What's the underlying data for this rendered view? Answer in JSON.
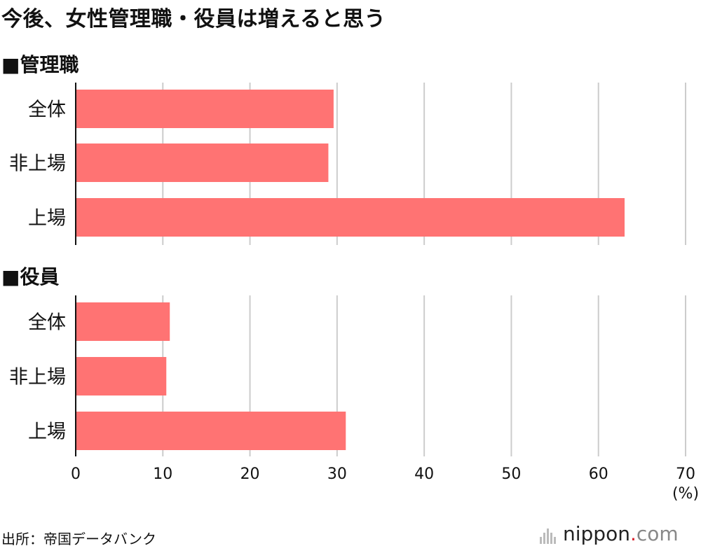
{
  "title": "今後、女性管理職・役員は増えると思う",
  "source": "出所：帝国データバンク",
  "logo": {
    "brand": "nippon",
    "dot": ".",
    "tld": "com"
  },
  "colors": {
    "bar": "#ff7373",
    "grid": "#cccccc",
    "axis": "#111111"
  },
  "chart_data": {
    "type": "bar",
    "orientation": "horizontal",
    "unit": "(%)",
    "xlim": [
      0,
      70
    ],
    "xticks": [
      0,
      10,
      20,
      30,
      40,
      50,
      60,
      70
    ],
    "grid": true,
    "panels": [
      {
        "heading": "■管理職",
        "categories": [
          "全体",
          "非上場",
          "上場"
        ],
        "values": [
          29.6,
          29.0,
          63.0
        ]
      },
      {
        "heading": "■役員",
        "categories": [
          "全体",
          "非上場",
          "上場"
        ],
        "values": [
          10.8,
          10.4,
          31.0
        ]
      }
    ]
  }
}
